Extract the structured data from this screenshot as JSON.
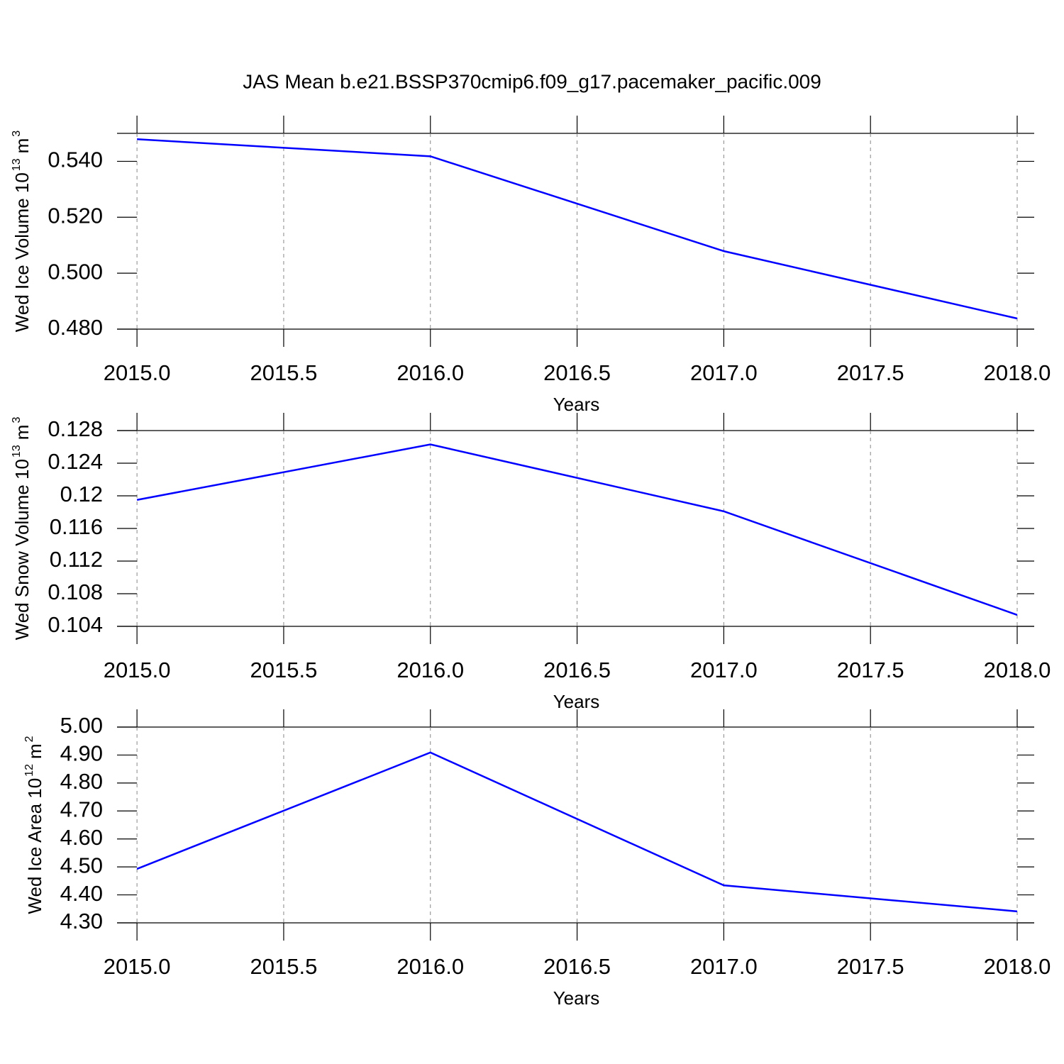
{
  "chart_data": [
    {
      "type": "line",
      "title": "JAS Mean b.e21.BSSP370cmip6.f09_g17.pacemaker_pacific.009",
      "x": [
        2015,
        2016,
        2017,
        2018
      ],
      "series": [
        {
          "color": "#0000ff",
          "values": [
            0.5479,
            0.5418,
            0.5079,
            0.4838
          ]
        }
      ],
      "xlabel": "Years",
      "ylabel": [
        {
          "text": "Wed Ice Volume 10"
        },
        {
          "text": "13",
          "sup": true
        },
        {
          "text": "m"
        },
        {
          "text": "3",
          "sup": true
        }
      ],
      "xlim": [
        2014.932,
        2018.058
      ],
      "ylim": [
        0.48,
        0.55
      ],
      "xticks": [
        {
          "value": 2015,
          "label": "2015.0"
        },
        {
          "value": 2015.5,
          "label": "2015.5"
        },
        {
          "value": 2016,
          "label": "2016.0"
        },
        {
          "value": 2016.5,
          "label": "2016.5"
        },
        {
          "value": 2017,
          "label": "2017.0"
        },
        {
          "value": 2017.5,
          "label": "2017.5"
        },
        {
          "value": 2018,
          "label": "2018.0"
        }
      ],
      "yticks": [
        {
          "value": 0.48,
          "label": "0.480"
        },
        {
          "value": 0.5,
          "label": "0.500"
        },
        {
          "value": 0.52,
          "label": "0.520"
        },
        {
          "value": 0.54,
          "label": "0.540"
        }
      ],
      "grid": "x"
    },
    {
      "type": "line",
      "x": [
        2015,
        2016,
        2017,
        2018
      ],
      "series": [
        {
          "color": "#0000ff",
          "values": [
            0.1195,
            0.1263,
            0.1181,
            0.1054
          ]
        }
      ],
      "xlabel": "Years",
      "ylabel": [
        {
          "text": "Wed Snow Volume 10"
        },
        {
          "text": "13",
          "sup": true
        },
        {
          "text": "m"
        },
        {
          "text": "3",
          "sup": true
        }
      ],
      "xlim": [
        2014.932,
        2018.058
      ],
      "ylim": [
        0.104,
        0.128
      ],
      "xticks": [
        {
          "value": 2015,
          "label": "2015.0"
        },
        {
          "value": 2015.5,
          "label": "2015.5"
        },
        {
          "value": 2016,
          "label": "2016.0"
        },
        {
          "value": 2016.5,
          "label": "2016.5"
        },
        {
          "value": 2017,
          "label": "2017.0"
        },
        {
          "value": 2017.5,
          "label": "2017.5"
        },
        {
          "value": 2018,
          "label": "2018.0"
        }
      ],
      "yticks": [
        0.104,
        0.108,
        0.112,
        0.116,
        0.12,
        0.124,
        0.128
      ],
      "grid": "x"
    },
    {
      "type": "line",
      "x": [
        2015,
        2016,
        2017,
        2018
      ],
      "series": [
        {
          "color": "#0000ff",
          "values": [
            4.493,
            4.909,
            4.434,
            4.341
          ]
        }
      ],
      "xlabel": "Years",
      "ylabel": [
        {
          "text": "Wed Ice Area 10"
        },
        {
          "text": "12",
          "sup": true
        },
        {
          "text": "m"
        },
        {
          "text": "2",
          "sup": true
        }
      ],
      "xlim": [
        2014.932,
        2018.058
      ],
      "ylim": [
        4.3,
        5.0
      ],
      "xticks": [
        {
          "value": 2015,
          "label": "2015.0"
        },
        {
          "value": 2015.5,
          "label": "2015.5"
        },
        {
          "value": 2016,
          "label": "2016.0"
        },
        {
          "value": 2016.5,
          "label": "2016.5"
        },
        {
          "value": 2017,
          "label": "2017.0"
        },
        {
          "value": 2017.5,
          "label": "2017.5"
        },
        {
          "value": 2018,
          "label": "2018.0"
        }
      ],
      "yticks": [
        {
          "value": 4.3,
          "label": "4.30"
        },
        {
          "value": 4.4,
          "label": "4.40"
        },
        {
          "value": 4.5,
          "label": "4.50"
        },
        {
          "value": 4.6,
          "label": "4.60"
        },
        {
          "value": 4.7,
          "label": "4.70"
        },
        {
          "value": 4.8,
          "label": "4.80"
        },
        {
          "value": 4.9,
          "label": "4.90"
        },
        {
          "value": 5.0,
          "label": "5.00"
        }
      ],
      "grid": "x"
    }
  ]
}
